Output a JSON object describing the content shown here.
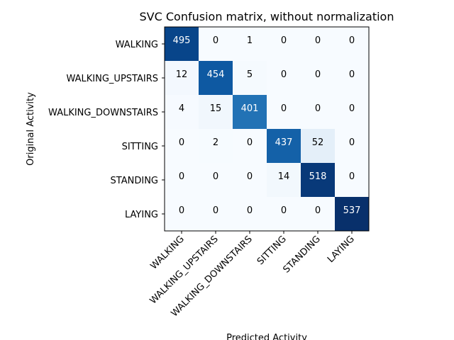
{
  "chart_data": {
    "type": "heatmap",
    "title": "SVC Confusion matrix, without normalization",
    "xlabel": "Predicted Activity",
    "ylabel": "Original Activity",
    "x_categories": [
      "WALKING",
      "WALKING_UPSTAIRS",
      "WALKING_DOWNSTAIRS",
      "SITTING",
      "STANDING",
      "LAYING"
    ],
    "y_categories": [
      "WALKING",
      "WALKING_UPSTAIRS",
      "WALKING_DOWNSTAIRS",
      "SITTING",
      "STANDING",
      "LAYING"
    ],
    "matrix": [
      [
        495,
        0,
        1,
        0,
        0,
        0
      ],
      [
        12,
        454,
        5,
        0,
        0,
        0
      ],
      [
        4,
        15,
        401,
        0,
        0,
        0
      ],
      [
        0,
        2,
        0,
        437,
        52,
        0
      ],
      [
        0,
        0,
        0,
        14,
        518,
        0
      ],
      [
        0,
        0,
        0,
        0,
        0,
        537
      ]
    ],
    "colormap": "Blues",
    "x_tick_rotation": 45,
    "grid": false,
    "legend": "none"
  }
}
